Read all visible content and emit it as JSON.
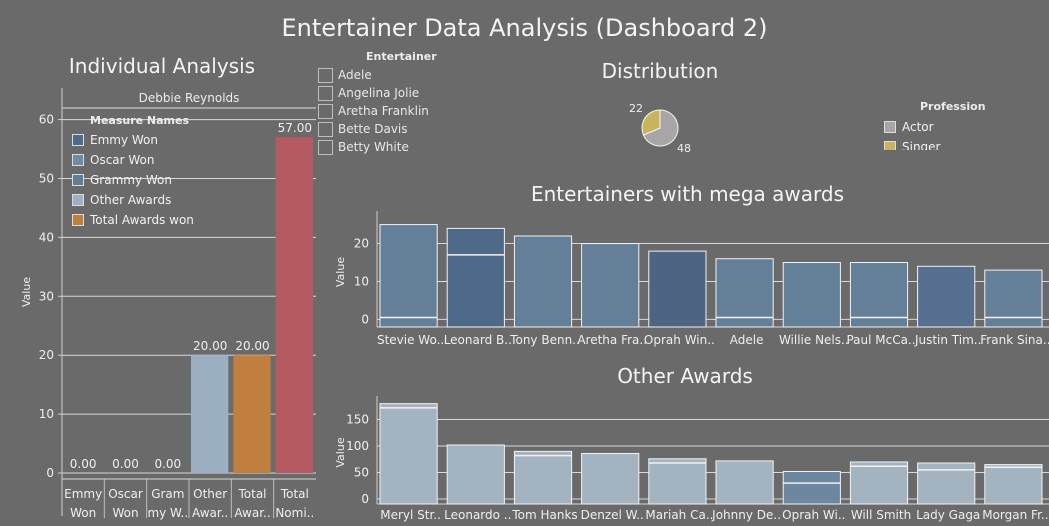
{
  "dashboard_title": "Entertainer Data Analysis (Dashboard 2)",
  "individual": {
    "title": "Individual Analysis",
    "entertainer_name": "Debbie Reynolds",
    "legend_title": "Measure Names",
    "legend": [
      {
        "label": "Emmy Won",
        "color": "#4e6d8c"
      },
      {
        "label": "Oscar Won",
        "color": "#6f8aa3"
      },
      {
        "label": "Grammy Won",
        "color": "#5f7d99"
      },
      {
        "label": "Other Awards",
        "color": "#9ab0c2"
      },
      {
        "label": "Total Awards won",
        "color": "#c07f3e"
      }
    ]
  },
  "filter": {
    "title": "Entertainer",
    "items": [
      "Adele",
      "Angelina Jolie",
      "Aretha Franklin",
      "Bette Davis",
      "Betty White"
    ]
  },
  "distribution": {
    "title": "Distribution",
    "legend_title": "Profession",
    "legend": [
      {
        "label": "Actor",
        "color": "#a9a4a6"
      },
      {
        "label": "Singer",
        "color": "#c8b45c"
      }
    ]
  },
  "mega": {
    "title": "Entertainers with mega awards"
  },
  "other": {
    "title": "Other Awards"
  },
  "chart_data": [
    {
      "type": "bar",
      "title": "Individual Analysis",
      "subtitle": "Debbie Reynolds",
      "categories": [
        "Emmy Won",
        "Oscar Won",
        "Grammy Won",
        "Other Awards",
        "Total Awards won",
        "Total Nominations"
      ],
      "tick_labels": [
        [
          "Emmy",
          "Won"
        ],
        [
          "Oscar",
          "Won"
        ],
        [
          "Gram",
          "my W.."
        ],
        [
          "Other",
          "Awar.."
        ],
        [
          "Total",
          "Awar.."
        ],
        [
          "Total",
          "Nomi.."
        ]
      ],
      "values": [
        0,
        0,
        0,
        20,
        20,
        57
      ],
      "data_labels": [
        "0.00",
        "0.00",
        "0.00",
        "20.00",
        "20.00",
        "57.00"
      ],
      "colors": [
        "#4e6d8c",
        "#6f8aa3",
        "#5f7d99",
        "#9ab0c2",
        "#c07f3e",
        "#b55a60"
      ],
      "ylabel": "Value",
      "yticks": [
        0,
        10,
        20,
        30,
        40,
        50,
        60
      ],
      "ylim": [
        0,
        64
      ]
    },
    {
      "type": "pie",
      "title": "Distribution",
      "slices": [
        {
          "label": "Actor",
          "value": 48,
          "color": "#a9a4a6"
        },
        {
          "label": "Singer",
          "value": 22,
          "color": "#c8b45c"
        }
      ]
    },
    {
      "type": "bar",
      "title": "Entertainers with mega awards",
      "categories": [
        "Stevie Wo..",
        "Leonard B..",
        "Tony Benn..",
        "Aretha Fra..",
        "Oprah Win..",
        "Adele",
        "Willie Nels..",
        "Paul McCa..",
        "Justin Tim..",
        "Frank Sina.."
      ],
      "values": [
        25,
        24,
        22,
        20,
        18,
        16,
        15,
        15,
        14,
        13
      ],
      "segments": [
        0.5,
        17,
        0,
        0,
        0,
        0.5,
        0,
        0.5,
        0,
        0.5
      ],
      "colors": [
        "#647f98",
        "#4f6a88",
        "#647f98",
        "#647f98",
        "#4d6482",
        "#647f98",
        "#647f98",
        "#647f98",
        "#58708f",
        "#647f98"
      ],
      "ylabel": "Value",
      "yticks": [
        0,
        10,
        20
      ],
      "ylim": [
        -2,
        27
      ]
    },
    {
      "type": "bar",
      "title": "Other Awards",
      "categories": [
        "Meryl Str..",
        "Leonardo ..",
        "Tom Hanks",
        "Denzel W..",
        "Mariah Ca..",
        "Johnny De..",
        "Oprah Wi..",
        "Will Smith",
        "Lady Gaga",
        "Morgan Fr.."
      ],
      "values": [
        180,
        102,
        90,
        86,
        76,
        72,
        52,
        70,
        68,
        65
      ],
      "segments": [
        172,
        0,
        82,
        0,
        68,
        0,
        30,
        62,
        55,
        60
      ],
      "colors": [
        "#a3b3c0",
        "#a3b3c0",
        "#a3b3c0",
        "#a3b3c0",
        "#a3b3c0",
        "#a3b3c0",
        "#6d87a0",
        "#a3b3c0",
        "#a3b3c0",
        "#a3b3c0"
      ],
      "ylabel": "Value",
      "yticks": [
        0,
        50,
        100,
        150
      ],
      "ylim": [
        -15,
        185
      ]
    }
  ]
}
